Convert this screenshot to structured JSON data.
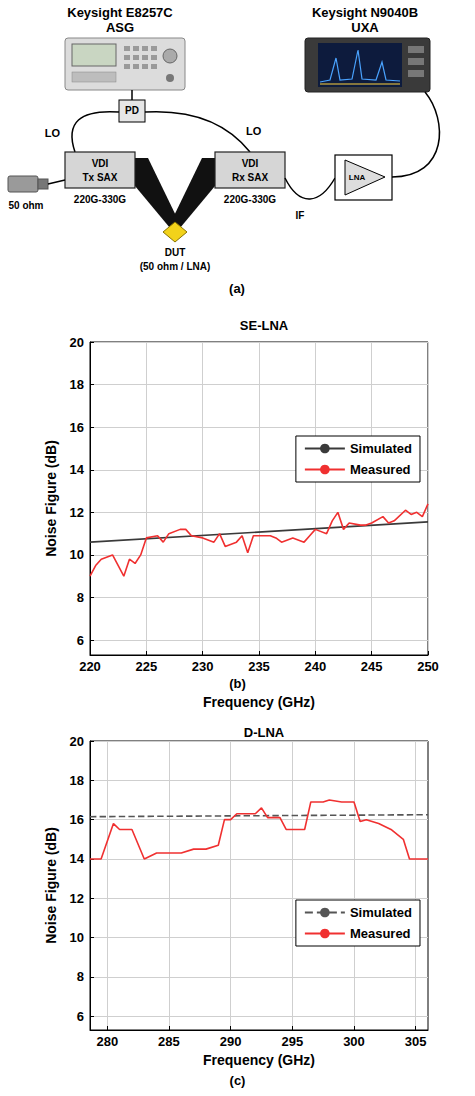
{
  "diagram": {
    "caption": "(a)",
    "instruments": [
      {
        "name": "Keysight E8257C",
        "label": "ASG"
      },
      {
        "name": "Keysight N9040B",
        "label": "UXA"
      }
    ],
    "pd": "PD",
    "lo": [
      "LO",
      "LO"
    ],
    "tx": {
      "name": "VDI",
      "label": "Tx SAX",
      "band": "220G-330G"
    },
    "rx": {
      "name": "VDI",
      "label": "Rx SAX",
      "band": "220G-330G"
    },
    "load": "50 ohm",
    "dut": {
      "name": "DUT",
      "label": "(50 ohm / LNA)"
    },
    "if": "IF",
    "lna": "LNA"
  },
  "chart_data": [
    {
      "type": "line",
      "title": "SE-LNA",
      "caption": "(b)",
      "x_label": "Frequency (GHz)",
      "y_label": "Noise Figure (dB)",
      "xlim": [
        220,
        250
      ],
      "xticks": [
        220,
        225,
        230,
        235,
        240,
        245,
        250
      ],
      "ylim": [
        5.3,
        20
      ],
      "yticks": [
        6,
        8,
        10,
        12,
        14,
        16,
        18,
        20
      ],
      "grid": true,
      "legend": "upper right",
      "series": [
        {
          "name": "Simulated",
          "color": "#3a3a3a",
          "line_style": "solid",
          "x": [
            220,
            250
          ],
          "values": [
            10.6,
            11.55
          ]
        },
        {
          "name": "Measured",
          "color": "#f03030",
          "line_style": "solid",
          "x": [
            220,
            220.5,
            221,
            222,
            223,
            223.5,
            224,
            224.5,
            225,
            226,
            226.5,
            227,
            228,
            228.5,
            229,
            230,
            231,
            231.5,
            232,
            233,
            233.5,
            234,
            234.5,
            235,
            236,
            236.5,
            237,
            238,
            239,
            239.5,
            240,
            241,
            241.5,
            242,
            242.5,
            243,
            244,
            244.5,
            245,
            246,
            246.5,
            247,
            248,
            248.5,
            249,
            249.5,
            250
          ],
          "values": [
            9.0,
            9.5,
            9.8,
            10.0,
            9.0,
            9.8,
            9.6,
            10.0,
            10.8,
            10.9,
            10.6,
            11.0,
            11.2,
            11.2,
            10.9,
            10.8,
            10.6,
            11.0,
            10.4,
            10.6,
            10.9,
            10.1,
            10.9,
            10.9,
            10.9,
            10.8,
            10.6,
            10.8,
            10.6,
            10.9,
            11.2,
            11.0,
            11.6,
            12.0,
            11.2,
            11.5,
            11.4,
            11.4,
            11.5,
            11.8,
            11.5,
            11.6,
            12.1,
            11.9,
            12.0,
            11.8,
            12.4
          ]
        }
      ]
    },
    {
      "type": "line",
      "title": "D-LNA",
      "caption": "(c)",
      "x_label": "Frequency (GHz)",
      "y_label": "Noise Figure (dB)",
      "xlim": [
        278.6,
        306
      ],
      "xticks": [
        280,
        285,
        290,
        295,
        300,
        305
      ],
      "ylim": [
        5.3,
        20
      ],
      "yticks": [
        6,
        8,
        10,
        12,
        14,
        16,
        18,
        20
      ],
      "grid": true,
      "legend": "right",
      "series": [
        {
          "name": "Simulated",
          "color": "#555555",
          "line_style": "dashed",
          "x": [
            278.6,
            306
          ],
          "values": [
            16.15,
            16.25
          ]
        },
        {
          "name": "Measured",
          "color": "#f03030",
          "line_style": "solid",
          "x": [
            278.6,
            279.5,
            280.5,
            281,
            282,
            283,
            284,
            286,
            287,
            288,
            289,
            289.5,
            290,
            290.5,
            292,
            292.5,
            293,
            294,
            294.5,
            296,
            296.5,
            297.5,
            298,
            299,
            300,
            300.5,
            301,
            302,
            303,
            304,
            304.5,
            306
          ],
          "values": [
            14.0,
            14.0,
            15.8,
            15.5,
            15.5,
            14.0,
            14.3,
            14.3,
            14.5,
            14.5,
            14.7,
            16.0,
            16.0,
            16.3,
            16.3,
            16.6,
            16.1,
            16.1,
            15.5,
            15.5,
            16.9,
            16.9,
            17.0,
            16.9,
            16.9,
            15.9,
            16.0,
            15.8,
            15.5,
            15.0,
            14.0,
            14.0
          ]
        }
      ]
    }
  ]
}
